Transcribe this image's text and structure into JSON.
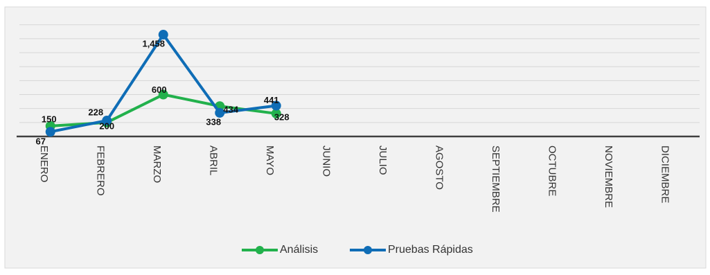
{
  "chart_data": {
    "type": "line",
    "categories": [
      "ENERO",
      "FEBRERO",
      "MARZO",
      "ABRIL",
      "MAYO",
      "JUNIO",
      "JULIO",
      "AGOSTO",
      "SEPTIEMBRE",
      "OCTUBRE",
      "NOVIEMBRE",
      "DICIEMBRE"
    ],
    "series": [
      {
        "name": "Análisis",
        "color": "#22b14c",
        "values": [
          150,
          200,
          600,
          434,
          328,
          null,
          null,
          null,
          null,
          null,
          null,
          null
        ],
        "labels": [
          "150",
          "200",
          "600",
          "434",
          "328"
        ]
      },
      {
        "name": "Pruebas Rápidas",
        "color": "#0f6db6",
        "values": [
          67,
          228,
          1458,
          338,
          441,
          null,
          null,
          null,
          null,
          null,
          null,
          null
        ],
        "labels": [
          "67",
          "228",
          "1,458",
          "338",
          "441"
        ]
      }
    ],
    "ylim": [
      0,
      1600
    ],
    "grid": true,
    "legend": "bottom",
    "title": "",
    "xlabel": "",
    "ylabel": ""
  }
}
